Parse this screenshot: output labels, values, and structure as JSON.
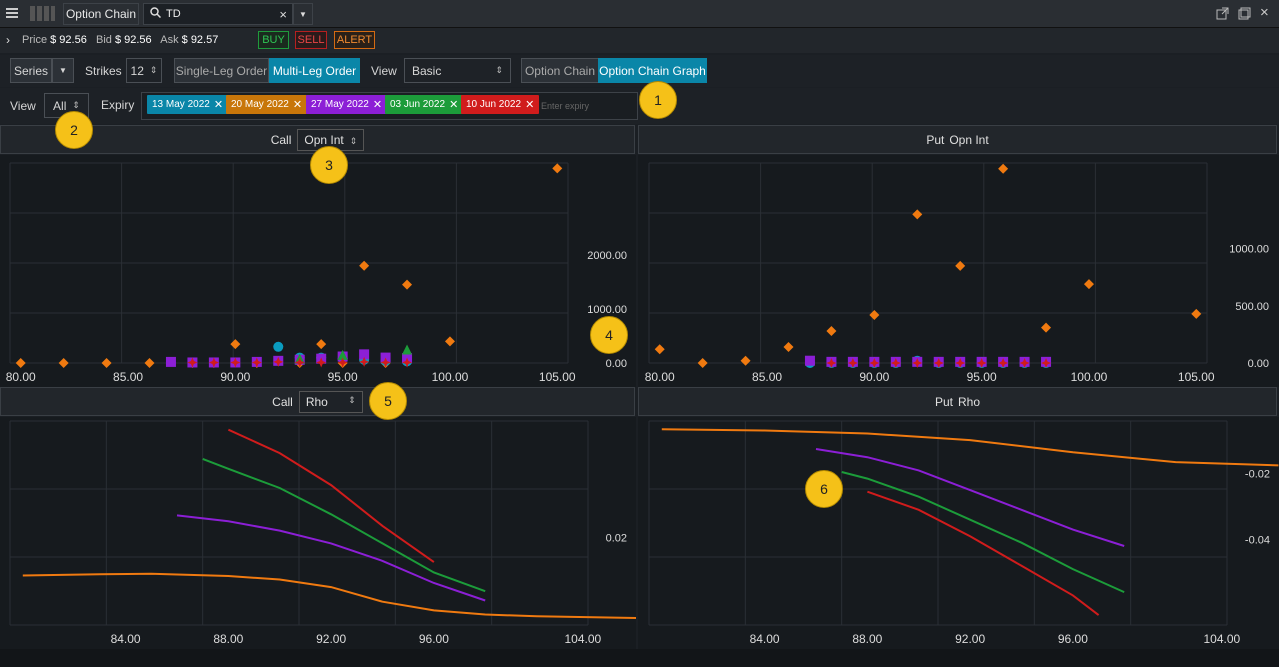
{
  "titlebar": {
    "app_title": "Option Chain",
    "search_value": "TD"
  },
  "pricebar": {
    "price_label": "Price",
    "price": "$ 92.56",
    "bid_label": "Bid",
    "bid": "$ 92.56",
    "ask_label": "Ask",
    "ask": "$ 92.57",
    "buy": "BUY",
    "sell": "SELL",
    "alert": "ALERT"
  },
  "toolbar": {
    "series": "Series",
    "strikes_label": "Strikes",
    "strikes_value": "12",
    "single_leg": "Single-Leg Order",
    "multi_leg": "Multi-Leg Order",
    "view_label": "View",
    "view_value": "Basic",
    "option_chain": "Option Chain",
    "option_chain_graph": "Option Chain Graph",
    "view2_label": "View",
    "view2_value": "All",
    "expiry_label": "Expiry",
    "expiry_placeholder": "Enter expiry",
    "expiries": [
      {
        "label": "13 May 2022",
        "color": "#0a86a8"
      },
      {
        "label": "20 May 2022",
        "color": "#c8760a"
      },
      {
        "label": "27 May 2022",
        "color": "#8c1fd6"
      },
      {
        "label": "03 Jun 2022",
        "color": "#1c9c3a"
      },
      {
        "label": "10 Jun 2022",
        "color": "#d01c1c"
      }
    ]
  },
  "panels": {
    "top_left": {
      "side": "Call",
      "metric": "Opn Int"
    },
    "top_right": {
      "side": "Put",
      "metric": "Opn Int"
    },
    "bottom_left": {
      "side": "Call",
      "metric": "Rho"
    },
    "bottom_right": {
      "side": "Put",
      "metric": "Rho"
    }
  },
  "badges": [
    "1",
    "2",
    "3",
    "4",
    "5",
    "6"
  ],
  "chart_data": [
    {
      "type": "scatter",
      "name_label": "Call Opn Int",
      "x_ticks": [
        "80.00",
        "85.00",
        "90.00",
        "95.00",
        "100.00",
        "105.00"
      ],
      "y_ticks": [
        "0.00",
        "1000.00",
        "2000.00"
      ],
      "xlim": [
        79.5,
        105.5
      ],
      "ylim": [
        0,
        3700
      ],
      "series": [
        {
          "color": "#f07a10",
          "shape": "diamond",
          "points": [
            [
              80,
              0
            ],
            [
              82,
              0
            ],
            [
              84,
              0
            ],
            [
              86,
              0
            ],
            [
              88,
              0
            ],
            [
              89,
              0
            ],
            [
              90,
              350
            ],
            [
              91,
              0
            ],
            [
              92,
              300
            ],
            [
              93,
              0
            ],
            [
              94,
              350
            ],
            [
              95,
              0
            ],
            [
              96,
              1800
            ],
            [
              97,
              0
            ],
            [
              98,
              1450
            ],
            [
              100,
              400
            ],
            [
              105,
              3600
            ]
          ]
        },
        {
          "color": "#0a9cc0",
          "shape": "circle",
          "points": [
            [
              92,
              300
            ],
            [
              93,
              100
            ],
            [
              94,
              100
            ],
            [
              95,
              80
            ],
            [
              96,
              60
            ],
            [
              97,
              40
            ],
            [
              98,
              30
            ]
          ]
        },
        {
          "color": "#8c1fd6",
          "shape": "square",
          "points": [
            [
              87,
              20
            ],
            [
              88,
              10
            ],
            [
              89,
              10
            ],
            [
              90,
              10
            ],
            [
              91,
              20
            ],
            [
              92,
              40
            ],
            [
              93,
              60
            ],
            [
              94,
              80
            ],
            [
              95,
              120
            ],
            [
              96,
              160
            ],
            [
              97,
              100
            ],
            [
              98,
              90
            ]
          ]
        },
        {
          "color": "#1c9c3a",
          "shape": "triangle",
          "points": [
            [
              93,
              80
            ],
            [
              95,
              150
            ],
            [
              98,
              250
            ]
          ]
        },
        {
          "color": "#d01c1c",
          "shape": "star",
          "points": [
            [
              88,
              10
            ],
            [
              89,
              10
            ],
            [
              90,
              10
            ],
            [
              91,
              10
            ],
            [
              92,
              20
            ],
            [
              93,
              10
            ],
            [
              94,
              10
            ],
            [
              95,
              10
            ],
            [
              96,
              20
            ],
            [
              97,
              10
            ],
            [
              98,
              10
            ]
          ]
        }
      ]
    },
    {
      "type": "scatter",
      "name_label": "Put Opn Int",
      "x_ticks": [
        "80.00",
        "85.00",
        "90.00",
        "95.00",
        "100.00",
        "105.00"
      ],
      "y_ticks": [
        "0.00",
        "500.00",
        "1000.00"
      ],
      "xlim": [
        79.5,
        105.5
      ],
      "ylim": [
        0,
        1750
      ],
      "series": [
        {
          "color": "#f07a10",
          "shape": "diamond",
          "points": [
            [
              80,
              120
            ],
            [
              82,
              0
            ],
            [
              84,
              20
            ],
            [
              86,
              140
            ],
            [
              88,
              280
            ],
            [
              90,
              420
            ],
            [
              92,
              1300
            ],
            [
              94,
              850
            ],
            [
              96,
              1700
            ],
            [
              98,
              310
            ],
            [
              100,
              690
            ],
            [
              105,
              430
            ]
          ]
        },
        {
          "color": "#0a9cc0",
          "shape": "circle",
          "points": [
            [
              87,
              0
            ],
            [
              88,
              0
            ],
            [
              89,
              0
            ],
            [
              90,
              0
            ],
            [
              91,
              0
            ],
            [
              92,
              20
            ],
            [
              93,
              0
            ],
            [
              94,
              0
            ],
            [
              95,
              0
            ],
            [
              96,
              0
            ],
            [
              97,
              0
            ],
            [
              98,
              0
            ]
          ]
        },
        {
          "color": "#8c1fd6",
          "shape": "square",
          "points": [
            [
              87,
              20
            ],
            [
              88,
              10
            ],
            [
              89,
              10
            ],
            [
              90,
              10
            ],
            [
              91,
              10
            ],
            [
              92,
              10
            ],
            [
              93,
              10
            ],
            [
              94,
              10
            ],
            [
              95,
              10
            ],
            [
              96,
              10
            ],
            [
              97,
              10
            ],
            [
              98,
              10
            ]
          ]
        },
        {
          "color": "#d01c1c",
          "shape": "star",
          "points": [
            [
              88,
              0
            ],
            [
              89,
              0
            ],
            [
              90,
              0
            ],
            [
              91,
              0
            ],
            [
              92,
              0
            ],
            [
              93,
              0
            ],
            [
              94,
              0
            ],
            [
              95,
              0
            ],
            [
              96,
              0
            ],
            [
              97,
              0
            ],
            [
              98,
              0
            ]
          ]
        }
      ]
    },
    {
      "type": "line",
      "name_label": "Call Rho",
      "x_ticks": [
        "84.00",
        "88.00",
        "92.00",
        "96.00",
        "104.00"
      ],
      "y_ticks": [
        "0.02"
      ],
      "series": [
        {
          "color": "#f07a10",
          "points": [
            [
              80,
              0.0135
            ],
            [
              83,
              0.0137
            ],
            [
              85,
              0.0138
            ],
            [
              88,
              0.0134
            ],
            [
              90,
              0.0128
            ],
            [
              92,
              0.0115
            ],
            [
              94,
              0.009
            ],
            [
              96,
              0.0075
            ],
            [
              98,
              0.0068
            ],
            [
              100,
              0.0065
            ],
            [
              104,
              0.0062
            ]
          ]
        },
        {
          "color": "#8c1fd6",
          "points": [
            [
              86,
              0.0238
            ],
            [
              88,
              0.0228
            ],
            [
              90,
              0.0212
            ],
            [
              92,
              0.019
            ],
            [
              94,
              0.016
            ],
            [
              96,
              0.0122
            ],
            [
              98,
              0.0092
            ]
          ]
        },
        {
          "color": "#1c9c3a",
          "points": [
            [
              87,
              0.0335
            ],
            [
              88,
              0.0318
            ],
            [
              90,
              0.0285
            ],
            [
              92,
              0.024
            ],
            [
              94,
              0.019
            ],
            [
              96,
              0.014
            ],
            [
              98,
              0.0108
            ]
          ]
        },
        {
          "color": "#d01c1c",
          "points": [
            [
              88,
              0.0385
            ],
            [
              90,
              0.0345
            ],
            [
              92,
              0.029
            ],
            [
              94,
              0.022
            ],
            [
              96,
              0.0158
            ]
          ]
        }
      ]
    },
    {
      "type": "line",
      "name_label": "Put Rho",
      "x_ticks": [
        "84.00",
        "88.00",
        "92.00",
        "96.00",
        "104.00"
      ],
      "y_ticks": [
        "-0.02",
        "-0.04"
      ],
      "series": [
        {
          "color": "#f07a10",
          "points": [
            [
              80,
              -0.0065
            ],
            [
              84,
              -0.0069
            ],
            [
              88,
              -0.0078
            ],
            [
              92,
              -0.0098
            ],
            [
              96,
              -0.0135
            ],
            [
              100,
              -0.0165
            ],
            [
              104,
              -0.0175
            ]
          ]
        },
        {
          "color": "#8c1fd6",
          "points": [
            [
              86,
              -0.0125
            ],
            [
              88,
              -0.015
            ],
            [
              90,
              -0.019
            ],
            [
              92,
              -0.025
            ],
            [
              94,
              -0.031
            ],
            [
              96,
              -0.037
            ],
            [
              98,
              -0.042
            ]
          ]
        },
        {
          "color": "#1c9c3a",
          "points": [
            [
              87,
              -0.0195
            ],
            [
              88,
              -0.0215
            ],
            [
              90,
              -0.027
            ],
            [
              92,
              -0.034
            ],
            [
              94,
              -0.041
            ],
            [
              96,
              -0.049
            ],
            [
              98,
              -0.056
            ]
          ]
        },
        {
          "color": "#d01c1c",
          "points": [
            [
              88,
              -0.0255
            ],
            [
              90,
              -0.031
            ],
            [
              92,
              -0.039
            ],
            [
              94,
              -0.048
            ],
            [
              96,
              -0.057
            ],
            [
              97,
              -0.063
            ]
          ]
        }
      ]
    }
  ]
}
